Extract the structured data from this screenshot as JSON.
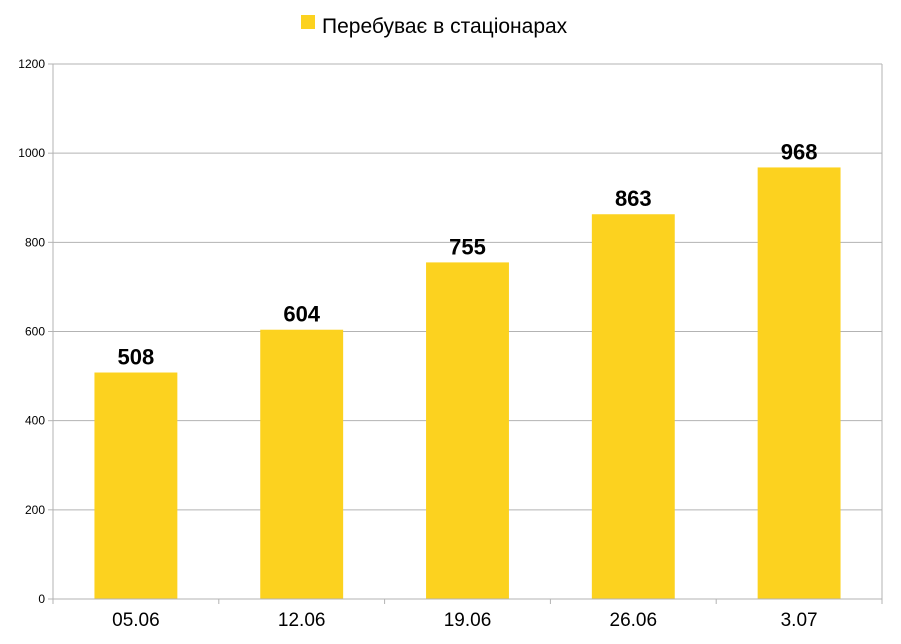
{
  "chart_data": {
    "type": "bar",
    "categories": [
      "05.06",
      "12.06",
      "19.06",
      "26.06",
      "3.07"
    ],
    "series": [
      {
        "name": "Перебуває в стаціонарах",
        "values": [
          508,
          604,
          755,
          863,
          968
        ],
        "color": "#FCD21F"
      }
    ],
    "data_labels": [
      "508",
      "604",
      "755",
      "863",
      "968"
    ],
    "yticks": [
      "0",
      "200",
      "400",
      "600",
      "800",
      "1000",
      "1200"
    ],
    "ylim": [
      0,
      1200
    ],
    "grid": true,
    "legend_position": "top-center",
    "gridline_color": "#b3b3b3"
  }
}
